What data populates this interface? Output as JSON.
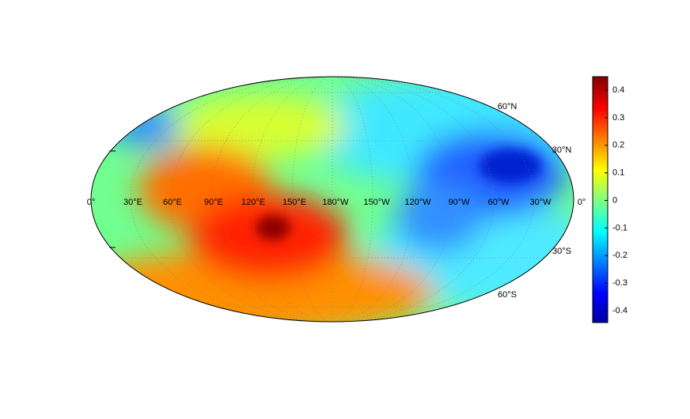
{
  "map": {
    "lon_labels": [
      "0°",
      "30°E",
      "60°E",
      "90°E",
      "120°E",
      "150°E",
      "180°W",
      "150°W",
      "120°W",
      "90°W",
      "60°W",
      "30°W",
      "0°"
    ],
    "lat_labels": [
      "60°N",
      "30°N",
      "30°S",
      "60°S"
    ]
  },
  "colorbar": {
    "ylim": [
      -0.443,
      0.449
    ],
    "yticks": [
      -0.4,
      -0.3,
      -0.2,
      -0.1,
      0,
      0.1,
      0.2,
      0.3,
      0.4
    ]
  }
}
